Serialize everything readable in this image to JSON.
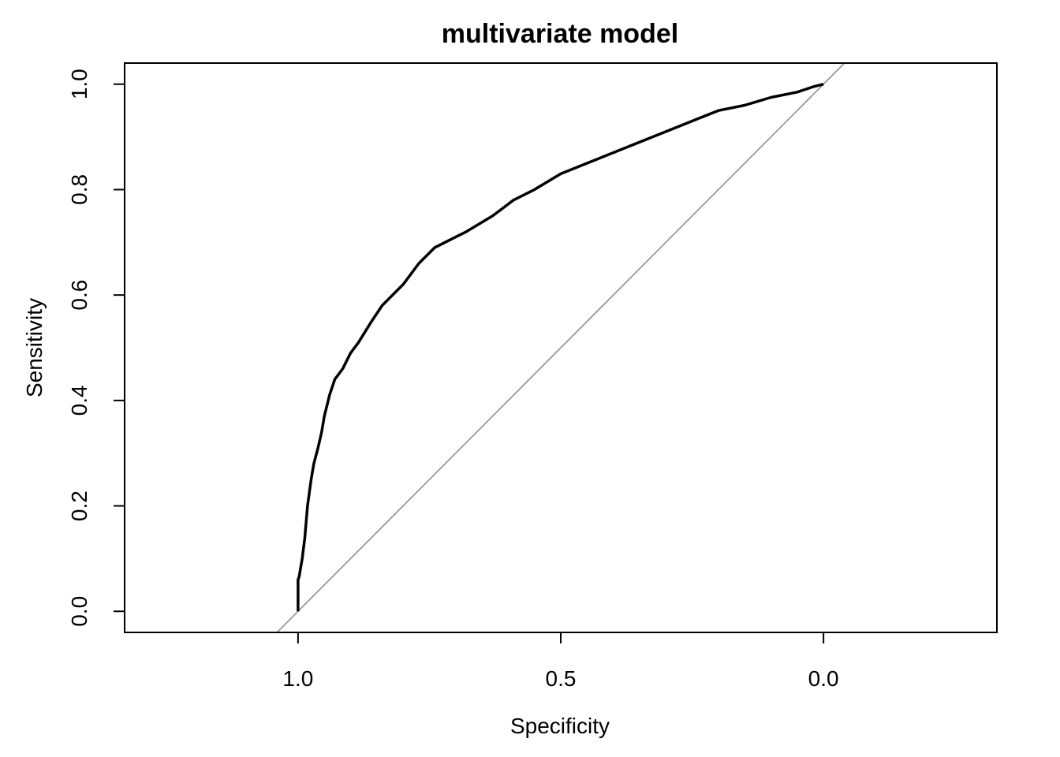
{
  "chart_data": {
    "type": "line",
    "title": "multivariate model",
    "xlabel": "Specificity",
    "ylabel": "Sensitivity",
    "x_reversed": true,
    "xlim": [
      1.33,
      -0.33
    ],
    "ylim": [
      -0.04,
      1.04
    ],
    "x_ticks": [
      1.0,
      0.5,
      0.0
    ],
    "x_tick_labels": [
      "1.0",
      "0.5",
      "0.0"
    ],
    "y_ticks": [
      0.0,
      0.2,
      0.4,
      0.6,
      0.8,
      1.0
    ],
    "y_tick_labels": [
      "0.0",
      "0.2",
      "0.4",
      "0.6",
      "0.8",
      "1.0"
    ],
    "grid": false,
    "series": [
      {
        "color": "#000000",
        "x": [
          1.0,
          1.0,
          0.998,
          0.992,
          0.987,
          0.982,
          0.975,
          0.97,
          0.962,
          0.955,
          0.95,
          0.94,
          0.93,
          0.915,
          0.9,
          0.885,
          0.86,
          0.84,
          0.82,
          0.8,
          0.77,
          0.74,
          0.7,
          0.68,
          0.63,
          0.59,
          0.55,
          0.5,
          0.45,
          0.4,
          0.35,
          0.3,
          0.25,
          0.2,
          0.15,
          0.1,
          0.05,
          0.02,
          0.0
        ],
        "y": [
          0.0,
          0.06,
          0.065,
          0.1,
          0.14,
          0.2,
          0.25,
          0.28,
          0.31,
          0.34,
          0.37,
          0.41,
          0.44,
          0.46,
          0.49,
          0.51,
          0.55,
          0.58,
          0.6,
          0.62,
          0.66,
          0.69,
          0.71,
          0.72,
          0.75,
          0.78,
          0.8,
          0.83,
          0.85,
          0.87,
          0.89,
          0.91,
          0.93,
          0.95,
          0.96,
          0.975,
          0.985,
          0.995,
          1.0
        ]
      },
      {
        "color": "#999999",
        "x": [
          1.04,
          -0.04
        ],
        "y": [
          -0.04,
          1.04
        ]
      }
    ]
  }
}
